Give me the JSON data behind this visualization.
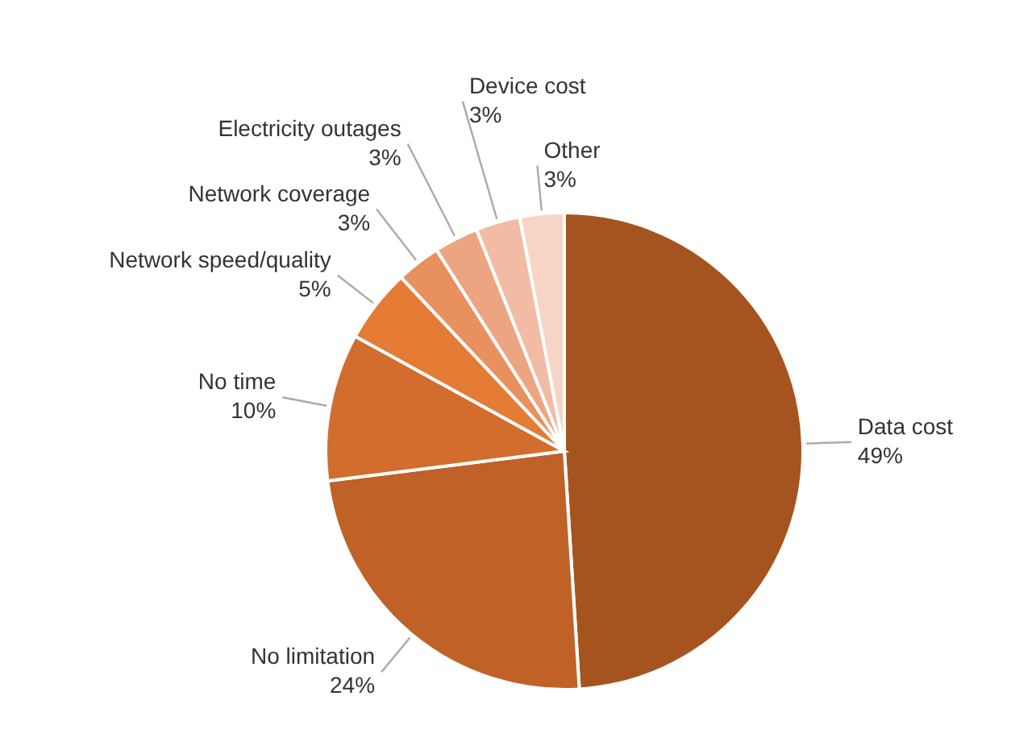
{
  "chart_data": {
    "type": "pie",
    "categories": [
      "Data cost",
      "No limitation",
      "No time",
      "Network speed/quality",
      "Network coverage",
      "Electricity outages",
      "Device cost",
      "Other"
    ],
    "values": [
      49,
      24,
      10,
      5,
      3,
      3,
      3,
      3
    ],
    "value_labels": [
      "49%",
      "24%",
      "10%",
      "5%",
      "3%",
      "3%",
      "3%",
      "3%"
    ],
    "colors": [
      "#a5541f",
      "#c06127",
      "#d26d2e",
      "#e47c36",
      "#e9905f",
      "#eda581",
      "#f1bba4",
      "#f7d5c6"
    ]
  }
}
